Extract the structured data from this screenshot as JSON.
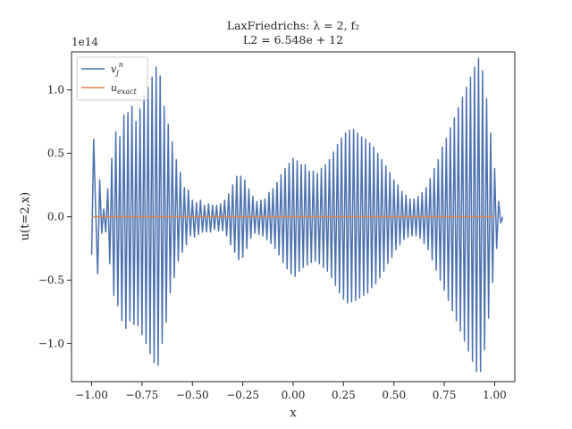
{
  "chart_data": {
    "type": "line",
    "title_line1": "LaxFriedrichs: λ = 2, f₂",
    "title_line2": "L2 = 6.548e + 12",
    "xlabel": "x",
    "ylabel": "u(t=2,x)",
    "y_offset_text": "1e14",
    "xlim": [
      -1.1,
      1.1
    ],
    "ylim": [
      -130000000000000.0,
      130000000000000.0
    ],
    "xticks": [
      -1.0,
      -0.75,
      -0.5,
      -0.25,
      0.0,
      0.25,
      0.5,
      0.75,
      1.0
    ],
    "xtick_labels": [
      "−1.00",
      "−0.75",
      "−0.50",
      "−0.25",
      "0.00",
      "0.25",
      "0.50",
      "0.75",
      "1.00"
    ],
    "yticks": [
      -100000000000000.0,
      -50000000000000.0,
      0,
      50000000000000.0,
      100000000000000.0
    ],
    "ytick_labels": [
      "−1.0",
      "−0.5",
      "0.0",
      "0.5",
      "1.0"
    ],
    "legend_position": "top-left",
    "grid": false,
    "series": [
      {
        "name": "v_j^n",
        "color": "#4c72b0",
        "sampling": "x from -1 to 1, step 0.01 (201 points); y values in units of 1e14",
        "x_start": -1.0,
        "x_step": 0.01,
        "y_scale": 100000000000000.0,
        "values": [
          -0.3,
          0.61,
          0.05,
          -0.45,
          0.29,
          -0.13,
          0.06,
          -0.12,
          0.22,
          -0.37,
          0.46,
          -0.62,
          0.67,
          -0.7,
          0.63,
          -0.82,
          0.8,
          -0.88,
          0.82,
          -0.82,
          0.87,
          -0.85,
          0.75,
          -0.86,
          0.85,
          -0.93,
          0.96,
          -1.0,
          1.02,
          -1.08,
          1.1,
          -1.15,
          1.18,
          -1.17,
          1.11,
          -1.0,
          0.87,
          -0.83,
          0.73,
          -0.6,
          0.59,
          -0.48,
          0.45,
          -0.35,
          0.35,
          -0.28,
          0.23,
          -0.22,
          0.21,
          -0.15,
          0.13,
          -0.16,
          0.11,
          -0.14,
          0.13,
          -0.12,
          0.09,
          -0.12,
          0.1,
          -0.12,
          0.09,
          -0.1,
          0.09,
          -0.11,
          0.1,
          -0.11,
          0.13,
          -0.15,
          0.18,
          -0.22,
          0.25,
          -0.28,
          0.32,
          -0.34,
          0.32,
          -0.32,
          0.29,
          -0.25,
          0.22,
          -0.17,
          0.16,
          -0.13,
          0.12,
          -0.14,
          0.13,
          -0.15,
          0.14,
          -0.18,
          0.19,
          -0.21,
          0.22,
          -0.25,
          0.27,
          -0.3,
          0.33,
          -0.36,
          0.38,
          -0.41,
          0.42,
          -0.45,
          0.46,
          -0.47,
          0.44,
          -0.43,
          0.41,
          -0.4,
          0.41,
          -0.38,
          0.36,
          -0.36,
          0.36,
          -0.35,
          0.34,
          -0.37,
          0.38,
          -0.4,
          0.41,
          -0.43,
          0.45,
          -0.48,
          0.51,
          -0.54,
          0.57,
          -0.6,
          0.62,
          -0.65,
          0.66,
          -0.68,
          0.68,
          -0.67,
          0.69,
          -0.66,
          0.66,
          -0.64,
          0.63,
          -0.62,
          0.61,
          -0.6,
          0.58,
          -0.56,
          0.55,
          -0.53,
          0.5,
          -0.48,
          0.45,
          -0.43,
          0.4,
          -0.37,
          0.35,
          -0.32,
          0.29,
          -0.26,
          0.25,
          -0.22,
          0.2,
          -0.18,
          0.17,
          -0.16,
          0.14,
          -0.15,
          0.14,
          -0.15,
          0.16,
          -0.17,
          0.19,
          -0.21,
          0.23,
          -0.26,
          0.3,
          -0.34,
          0.38,
          -0.42,
          0.45,
          -0.5,
          0.55,
          -0.58,
          0.62,
          -0.66,
          0.7,
          -0.74,
          0.78,
          -0.82,
          0.86,
          -0.9,
          0.94,
          -0.98,
          1.02,
          -1.06,
          1.1,
          -1.14,
          1.18,
          -1.22,
          1.25,
          -1.22,
          1.15,
          -1.05,
          0.93,
          -0.8,
          0.66,
          -0.52,
          0.38,
          -0.25,
          0.12,
          -0.05,
          0.0
        ]
      },
      {
        "name": "u_exact",
        "color": "#dd8452",
        "x": [
          -1.0,
          1.0
        ],
        "values": [
          0,
          0
        ]
      }
    ]
  }
}
